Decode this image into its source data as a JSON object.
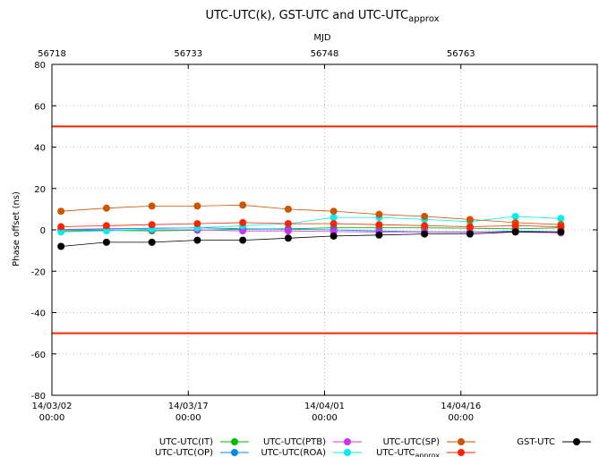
{
  "chart_data": {
    "type": "line",
    "title": "UTC-UTC(k), GST-UTC and UTC-UTC",
    "title_subscript": "approx",
    "top_axis_label": "MJD",
    "ylabel": "Phase offset (ns)",
    "ylim": [
      -80,
      80
    ],
    "y_ticks": [
      -80,
      -60,
      -40,
      -20,
      0,
      20,
      40,
      60,
      80
    ],
    "xlim_mjd": [
      56718,
      56778
    ],
    "top_ticks": [
      {
        "mjd": 56718,
        "label": "56718"
      },
      {
        "mjd": 56733,
        "label": "56733"
      },
      {
        "mjd": 56748,
        "label": "56748"
      },
      {
        "mjd": 56763,
        "label": "56763"
      }
    ],
    "bottom_ticks": [
      {
        "mjd": 56718,
        "date": "14/03/02",
        "time": "00:00"
      },
      {
        "mjd": 56733,
        "date": "14/03/17",
        "time": "00:00"
      },
      {
        "mjd": 56748,
        "date": "14/04/01",
        "time": "00:00"
      },
      {
        "mjd": 56763,
        "date": "14/04/16",
        "time": "00:00"
      }
    ],
    "grid": true,
    "limit_lines": {
      "values": [
        50,
        -50
      ],
      "color": "#ff2200"
    },
    "x": [
      56719,
      56724,
      56729,
      56734,
      56739,
      56744,
      56749,
      56754,
      56759,
      56764,
      56769,
      56774
    ],
    "series": [
      {
        "name": "UTC-UTC(IT)",
        "color": "#00bb00",
        "values": [
          -0.5,
          -0.3,
          -0.5,
          -0.2,
          0.3,
          0.5,
          1.0,
          1.0,
          1.0,
          0.8,
          0.5,
          1.0
        ]
      },
      {
        "name": "UTC-UTC(OP)",
        "color": "#0088ee",
        "values": [
          0.2,
          0.5,
          0.8,
          1.0,
          0.5,
          0.3,
          0.0,
          -0.5,
          -1.0,
          -1.2,
          -0.5,
          -1.0
        ]
      },
      {
        "name": "UTC-UTC(PTB)",
        "color": "#cc33ee",
        "values": [
          0.0,
          0.0,
          0.0,
          0.0,
          -0.5,
          -0.5,
          -0.8,
          -1.0,
          -1.0,
          -1.0,
          -1.0,
          -1.5
        ]
      },
      {
        "name": "UTC-UTC(ROA)",
        "color": "#00eeee",
        "values": [
          -1.0,
          -0.5,
          0.5,
          1.0,
          2.0,
          3.0,
          6.0,
          6.0,
          5.0,
          4.0,
          6.5,
          5.5
        ]
      },
      {
        "name": "UTC-UTC(SP)",
        "color": "#cc5500",
        "values": [
          9.0,
          10.5,
          11.5,
          11.5,
          12.0,
          10.0,
          9.0,
          7.5,
          6.5,
          5.0,
          3.5,
          2.5
        ]
      },
      {
        "name": "UTC-UTC",
        "name_subscript": "approx",
        "color": "#ff2200",
        "values": [
          1.5,
          2.0,
          2.5,
          3.0,
          3.5,
          3.0,
          3.0,
          2.5,
          2.0,
          1.5,
          2.0,
          1.5
        ]
      },
      {
        "name": "GST-UTC",
        "color": "#000000",
        "values": [
          -8.0,
          -6.0,
          -6.0,
          -5.0,
          -5.0,
          -4.0,
          -3.0,
          -2.5,
          -2.0,
          -2.0,
          -1.0,
          -1.0
        ]
      }
    ]
  }
}
